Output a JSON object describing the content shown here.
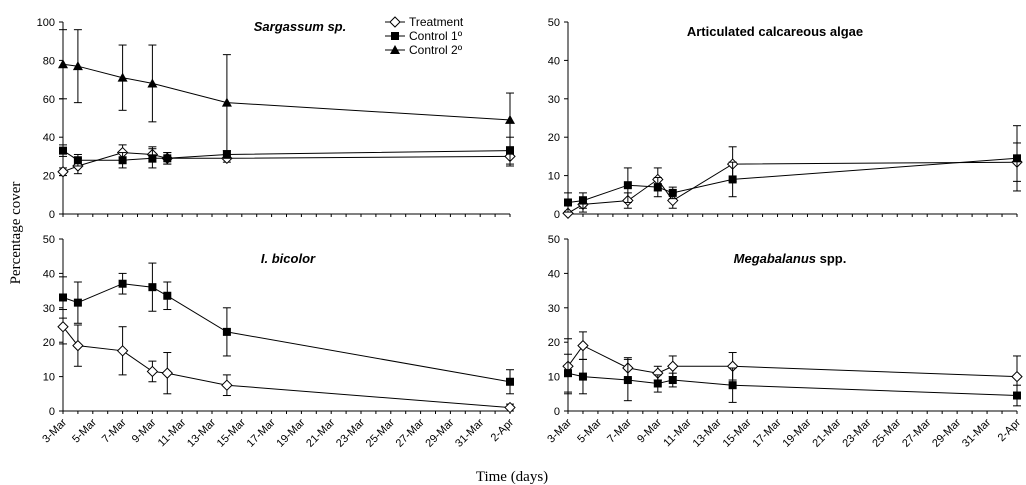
{
  "figure": {
    "ylabel": "Percentage cover",
    "xlabel": "Time (days)"
  },
  "legend": [
    {
      "name": "Treatment",
      "marker": "diamond"
    },
    {
      "name": "Control 1º",
      "marker": "square"
    },
    {
      "name": "Control 2º",
      "marker": "triangle"
    }
  ],
  "x_tick_labels": [
    "3-Mar",
    "5-Mar",
    "7-Mar",
    "9-Mar",
    "11-Mar",
    "13-Mar",
    "15-Mar",
    "17-Mar",
    "19-Mar",
    "21-Mar",
    "23-Mar",
    "25-Mar",
    "27-Mar",
    "29-Mar",
    "31-Mar",
    "2-Apr"
  ],
  "chart_data": [
    {
      "type": "line",
      "title": "Sargassum sp.",
      "title_italic": true,
      "title_suffix": "",
      "xlabel": "Time (days)",
      "ylabel": "Percentage cover",
      "ylim": [
        0,
        100
      ],
      "yticks": [
        0,
        20,
        40,
        60,
        80,
        100
      ],
      "grid": false,
      "legend_position": "top-right",
      "series": [
        {
          "name": "Treatment",
          "marker": "diamond",
          "x": [
            3,
            4,
            7,
            9,
            10,
            14,
            33
          ],
          "y": [
            22,
            25,
            32,
            31,
            29,
            29,
            30
          ],
          "err": [
            2,
            4,
            4,
            4,
            3,
            2,
            5
          ]
        },
        {
          "name": "Control 1º",
          "marker": "square",
          "x": [
            3,
            4,
            7,
            9,
            10,
            14,
            33
          ],
          "y": [
            33,
            28,
            28,
            29,
            29,
            31,
            33
          ],
          "err": [
            3,
            3,
            4,
            5,
            3,
            2,
            7
          ]
        },
        {
          "name": "Control 2º",
          "marker": "triangle",
          "x": [
            3,
            4,
            7,
            9,
            14,
            33
          ],
          "y": [
            78,
            77,
            71,
            68,
            58,
            49
          ],
          "err": [
            18,
            19,
            17,
            20,
            25,
            14
          ]
        }
      ]
    },
    {
      "type": "line",
      "title": "Articulated  calcareous algae",
      "title_italic": false,
      "title_suffix": "",
      "ylim": [
        0,
        50
      ],
      "yticks": [
        0,
        10,
        20,
        30,
        40,
        50
      ],
      "grid": false,
      "series": [
        {
          "name": "Treatment",
          "marker": "diamond",
          "x": [
            3,
            4,
            7,
            9,
            10,
            14,
            33
          ],
          "y": [
            0.2,
            2.5,
            3.5,
            9,
            3.5,
            13,
            13.5
          ],
          "err": [
            0.5,
            2,
            2,
            3,
            2,
            4.5,
            5
          ]
        },
        {
          "name": "Control 1º",
          "marker": "square",
          "x": [
            3,
            4,
            7,
            9,
            10,
            14,
            33
          ],
          "y": [
            3,
            3.5,
            7.5,
            7,
            5.5,
            9,
            14.5
          ],
          "err": [
            2.5,
            2,
            4.5,
            2.5,
            1.5,
            4.5,
            8.5
          ]
        }
      ]
    },
    {
      "type": "line",
      "title": "I. bicolor",
      "title_italic": true,
      "title_suffix": "",
      "ylim": [
        0,
        50
      ],
      "yticks": [
        0,
        10,
        20,
        30,
        40,
        50
      ],
      "grid": false,
      "series": [
        {
          "name": "Treatment",
          "marker": "diamond",
          "x": [
            3,
            4,
            7,
            9,
            10,
            14,
            33
          ],
          "y": [
            24.5,
            19,
            17.5,
            11.5,
            11,
            7.5,
            1
          ],
          "err": [
            5,
            6,
            7,
            3,
            6,
            3,
            1
          ]
        },
        {
          "name": "Control 1º",
          "marker": "square",
          "x": [
            3,
            4,
            7,
            9,
            10,
            14,
            33
          ],
          "y": [
            33,
            31.5,
            37,
            36,
            33.5,
            23,
            8.5
          ],
          "err": [
            6,
            6,
            3,
            7,
            4,
            7,
            3.5
          ]
        }
      ]
    },
    {
      "type": "line",
      "title": "Megabalanus",
      "title_italic": true,
      "title_suffix": " spp.",
      "ylim": [
        0,
        50
      ],
      "yticks": [
        0,
        10,
        20,
        30,
        40,
        50
      ],
      "grid": false,
      "series": [
        {
          "name": "Treatment",
          "marker": "diamond",
          "x": [
            3,
            4,
            7,
            9,
            10,
            14,
            33
          ],
          "y": [
            13,
            19,
            12.5,
            11,
            13,
            13,
            10
          ],
          "err": [
            8,
            4,
            3,
            2,
            3,
            4,
            6
          ]
        },
        {
          "name": "Control 1º",
          "marker": "square",
          "x": [
            3,
            4,
            7,
            9,
            10,
            14,
            33
          ],
          "y": [
            11,
            10,
            9,
            8,
            9,
            7.5,
            4.5
          ],
          "err": [
            5.5,
            5,
            6,
            2.5,
            2,
            5,
            3
          ]
        }
      ]
    }
  ]
}
